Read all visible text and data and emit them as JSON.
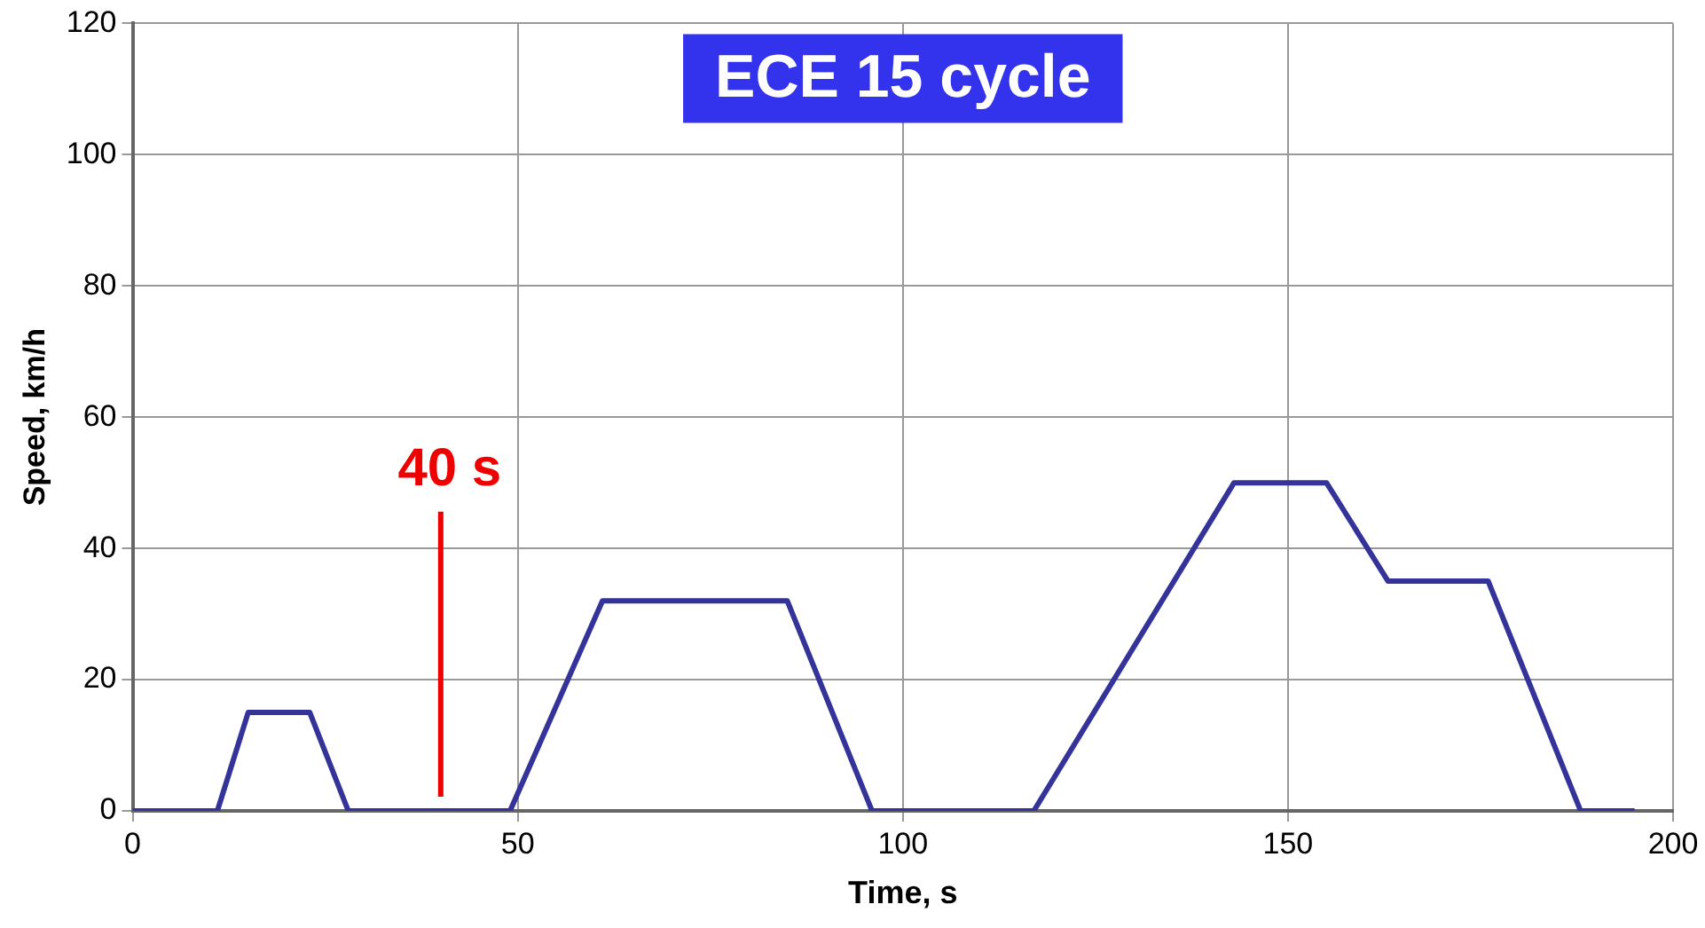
{
  "chart_data": {
    "type": "line",
    "title": "ECE 15 cycle",
    "xlabel": "Time, s",
    "ylabel": "Speed, km/h",
    "x": [
      0,
      11,
      15,
      23,
      28,
      49,
      61,
      85,
      96,
      117,
      143,
      155,
      163,
      176,
      188,
      195
    ],
    "series": [
      {
        "color": "#333399",
        "values": [
          0,
          0,
          15,
          15,
          0,
          0,
          32,
          32,
          0,
          0,
          50,
          50,
          35,
          35,
          0,
          0
        ]
      }
    ],
    "xlim": [
      0,
      200
    ],
    "xticks": [
      0,
      50,
      100,
      150,
      200
    ],
    "ylim": [
      0,
      120
    ],
    "yticks": [
      0,
      20,
      40,
      60,
      80,
      100,
      120
    ],
    "grid": true,
    "legend": false,
    "marker": "none",
    "line_style": "solid",
    "ref_lines": [
      {
        "axis": "x",
        "value": 40,
        "label": "40 s",
        "color": "#ee0000"
      }
    ]
  }
}
